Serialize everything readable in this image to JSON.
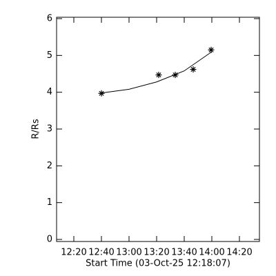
{
  "chart_data": {
    "type": "scatter",
    "x_label": "Start Time (03-Oct-25 12:18:07)",
    "y_label": "R/Rs",
    "x": [
      760,
      801.5,
      813.5,
      826.5,
      839.5
    ],
    "series": [
      {
        "values": [
          3.97,
          4.47,
          4.47,
          4.62,
          5.15
        ],
        "color": "#000000",
        "marker": "asterisk"
      }
    ],
    "fit": {
      "x": [
        760,
        780,
        800,
        820,
        840
      ],
      "values": [
        3.98,
        4.08,
        4.28,
        4.58,
        5.1
      ],
      "color": "#000000"
    },
    "xlim": [
      727.5,
      874.5
    ],
    "ylim": [
      0,
      6
    ],
    "xticks": [
      {
        "value": 740,
        "label": "12:20"
      },
      {
        "value": 760,
        "label": "12:40"
      },
      {
        "value": 780,
        "label": "13:00"
      },
      {
        "value": 800,
        "label": "13:20"
      },
      {
        "value": 820,
        "label": "13:40"
      },
      {
        "value": 840,
        "label": "14:00"
      },
      {
        "value": 860,
        "label": "14:20"
      }
    ],
    "yticks": [
      0,
      1,
      2,
      3,
      4,
      5,
      6
    ]
  }
}
